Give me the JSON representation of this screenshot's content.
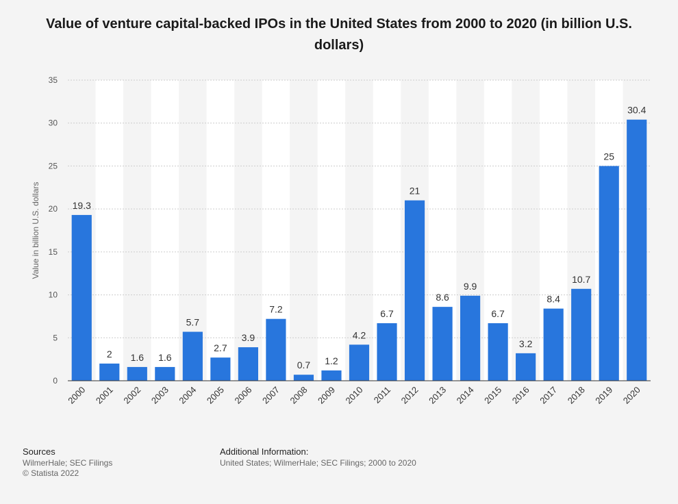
{
  "title": "Value of venture capital-backed IPOs in the United States from 2000 to 2020 (in billion U.S. dollars)",
  "footer": {
    "sources_heading": "Sources",
    "sources_line1": "WilmerHale; SEC Filings",
    "sources_line2": "© Statista 2022",
    "additional_heading": "Additional Information:",
    "additional_text": "United States; WilmerHale; SEC Filings; 2000 to 2020"
  },
  "colors": {
    "bar": "#2876dd",
    "grid": "#cccccc",
    "band": "#ffffff",
    "axis": "#333333"
  },
  "chart_data": {
    "type": "bar",
    "categories": [
      "2000",
      "2001",
      "2002",
      "2003",
      "2004",
      "2005",
      "2006",
      "2007",
      "2008",
      "2009",
      "2010",
      "2011",
      "2012",
      "2013",
      "2014",
      "2015",
      "2016",
      "2017",
      "2018",
      "2019",
      "2020"
    ],
    "values": [
      19.3,
      2,
      1.6,
      1.6,
      5.7,
      2.7,
      3.9,
      7.2,
      0.7,
      1.2,
      4.2,
      6.7,
      21,
      8.6,
      9.9,
      6.7,
      3.2,
      8.4,
      10.7,
      25,
      30.4
    ],
    "value_labels": [
      "19.3",
      "2",
      "1.6",
      "1.6",
      "5.7",
      "2.7",
      "3.9",
      "7.2",
      "0.7",
      "1.2",
      "4.2",
      "6.7",
      "21",
      "8.6",
      "9.9",
      "6.7",
      "3.2",
      "8.4",
      "10.7",
      "25",
      "30.4"
    ],
    "ylabel": "Value in billion U.S. dollars",
    "ylim": [
      0,
      35
    ],
    "yticks": [
      0,
      5,
      10,
      15,
      20,
      25,
      30,
      35
    ],
    "ytick_labels": [
      "0",
      "5",
      "10",
      "15",
      "20",
      "25",
      "30",
      "35"
    ],
    "grid": true,
    "legend": "none"
  }
}
